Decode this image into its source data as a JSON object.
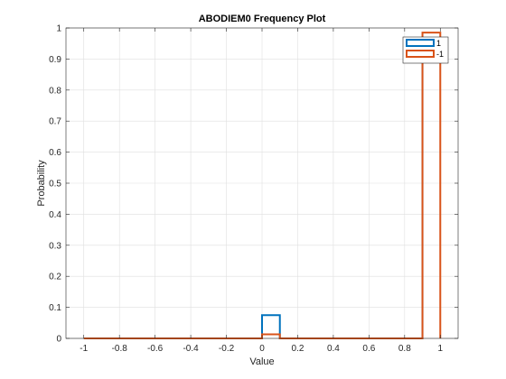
{
  "chart_data": {
    "type": "area",
    "title": "ABODIEM0 Frequency Plot",
    "xlabel": "Value",
    "ylabel": "Probability",
    "xlim": [
      -1.1,
      1.1
    ],
    "ylim": [
      0,
      1
    ],
    "xticks": [
      -1,
      -0.8,
      -0.6,
      -0.4,
      -0.2,
      0,
      0.2,
      0.4,
      0.6,
      0.8,
      1
    ],
    "xtick_labels": [
      "-1",
      "-0.8",
      "-0.6",
      "-0.4",
      "-0.2",
      "0",
      "0.2",
      "0.4",
      "0.6",
      "0.8",
      "1"
    ],
    "yticks": [
      0,
      0.1,
      0.2,
      0.3,
      0.4,
      0.5,
      0.6,
      0.7,
      0.8,
      0.9,
      1
    ],
    "ytick_labels": [
      "0",
      "0.1",
      "0.2",
      "0.3",
      "0.4",
      "0.5",
      "0.6",
      "0.7",
      "0.8",
      "0.9",
      "1"
    ],
    "grid": true,
    "legend_position": "top-right",
    "series": [
      {
        "name": "1",
        "color": "#0072BD",
        "x": [
          -1,
          0,
          0,
          0.1,
          0.1,
          0.9,
          0.9,
          1
        ],
        "y": [
          0,
          0,
          0.075,
          0.075,
          0,
          0,
          0.95,
          0.95
        ]
      },
      {
        "name": "-1",
        "color": "#D95319",
        "x": [
          -1,
          0,
          0,
          0.1,
          0.1,
          0.9,
          0.9,
          1,
          1
        ],
        "y": [
          0,
          0,
          0.013,
          0.013,
          0,
          0,
          0.985,
          0.985,
          0
        ]
      }
    ]
  }
}
